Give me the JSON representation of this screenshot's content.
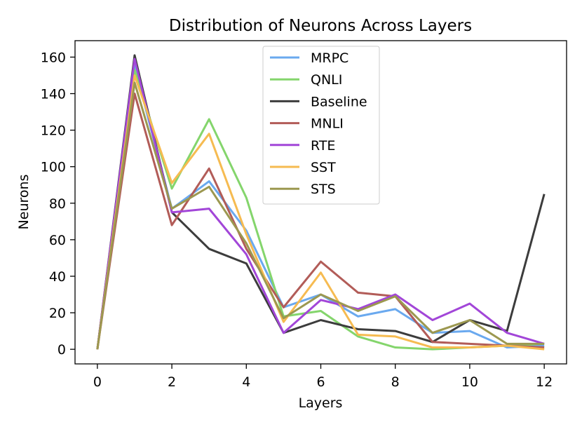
{
  "chart_data": {
    "type": "line",
    "title": "Distribution of Neurons Across Layers",
    "xlabel": "Layers",
    "ylabel": "Neurons",
    "x": [
      0,
      1,
      2,
      3,
      4,
      5,
      6,
      7,
      8,
      9,
      10,
      11,
      12
    ],
    "xticks": [
      0,
      2,
      4,
      6,
      8,
      10,
      12
    ],
    "yticks": [
      0,
      20,
      40,
      60,
      80,
      100,
      120,
      140,
      160
    ],
    "xlim": [
      -0.6,
      12.6
    ],
    "ylim": [
      -8,
      169
    ],
    "grid": false,
    "legend_position": "top-center",
    "series": [
      {
        "name": "MRPC",
        "color": "#6aa9ef",
        "values": [
          0,
          155,
          77,
          92,
          65,
          23,
          30,
          18,
          22,
          9,
          10,
          1,
          2
        ]
      },
      {
        "name": "QNLI",
        "color": "#84d56c",
        "values": [
          0,
          153,
          88,
          126,
          83,
          18,
          21,
          7,
          1,
          0,
          1,
          2,
          3
        ]
      },
      {
        "name": "Baseline",
        "color": "#3c3c3c",
        "values": [
          0,
          161,
          75,
          55,
          47,
          9,
          16,
          11,
          10,
          4,
          16,
          10,
          85
        ]
      },
      {
        "name": "MNLI",
        "color": "#b25c58",
        "values": [
          0,
          140,
          68,
          99,
          55,
          23,
          48,
          31,
          29,
          4,
          3,
          2,
          1
        ]
      },
      {
        "name": "RTE",
        "color": "#a246d8",
        "values": [
          0,
          159,
          75,
          77,
          52,
          9,
          27,
          22,
          30,
          16,
          25,
          9,
          3
        ]
      },
      {
        "name": "SST",
        "color": "#f6bb51",
        "values": [
          0,
          150,
          91,
          118,
          63,
          15,
          42,
          8,
          7,
          1,
          1,
          2,
          0
        ]
      },
      {
        "name": "STS",
        "color": "#9c9850",
        "values": [
          0,
          146,
          77,
          89,
          58,
          17,
          30,
          21,
          29,
          9,
          16,
          3,
          3
        ]
      }
    ]
  }
}
